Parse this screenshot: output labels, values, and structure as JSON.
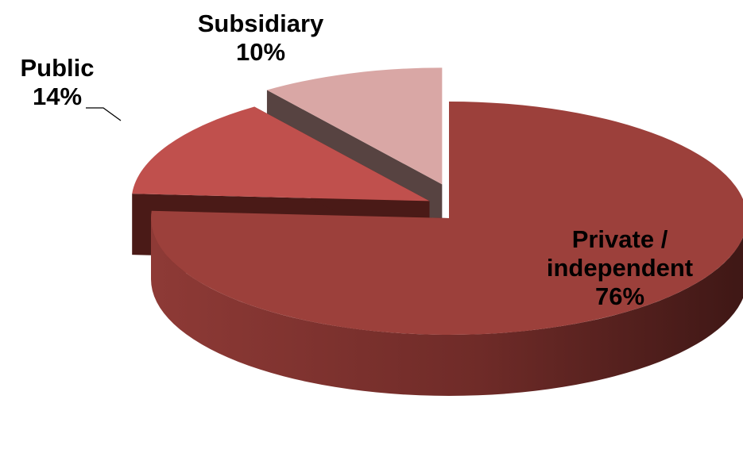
{
  "chart_data": {
    "type": "pie",
    "style": "3d-exploded",
    "slices": [
      {
        "category": "Private / independent",
        "label_lines": [
          "Private /",
          "independent"
        ],
        "value": 76,
        "value_label": "76%",
        "color": "#9C403B"
      },
      {
        "category": "Public",
        "label_lines": [
          "Public"
        ],
        "value": 14,
        "value_label": "14%",
        "color": "#C0504D"
      },
      {
        "category": "Subsidiary",
        "label_lines": [
          "Subsidiary"
        ],
        "value": 10,
        "value_label": "10%",
        "color": "#D9A7A5"
      }
    ],
    "legend": "none"
  }
}
